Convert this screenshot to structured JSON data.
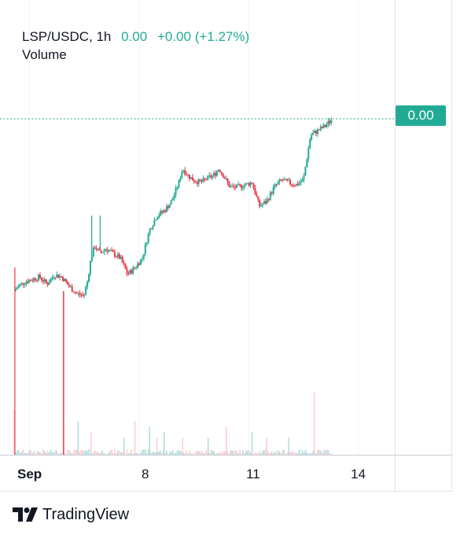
{
  "legend": {
    "symbol": "LSP/USDC, 1h",
    "price": "0.00",
    "change": "+0.00 (+1.27%)",
    "volume_label": "Volume"
  },
  "price_label": "0.00",
  "brand": "TradingView",
  "colors": {
    "up": "#22ab94",
    "down": "#f23645",
    "up_volume": "#b2dfdb",
    "down_volume": "#ffcdd2",
    "grid": "#f0f3fa"
  },
  "chart_data": {
    "type": "candlestick",
    "x_ticks": [
      {
        "label": "Sep",
        "day": 5
      },
      {
        "label": "8",
        "day": 8
      },
      {
        "label": "11",
        "day": 11
      },
      {
        "label": "14",
        "day": 14
      }
    ],
    "x_range_days": [
      4.6,
      15.0
    ],
    "y_range": [
      0,
      100
    ],
    "last_price_level": 99,
    "close_path": [
      [
        4.6,
        26
      ],
      [
        4.7,
        28
      ],
      [
        4.9,
        30
      ],
      [
        5.1,
        31
      ],
      [
        5.3,
        32
      ],
      [
        5.5,
        29
      ],
      [
        5.7,
        33
      ],
      [
        5.9,
        32
      ],
      [
        6.1,
        28
      ],
      [
        6.3,
        25
      ],
      [
        6.5,
        24
      ],
      [
        6.6,
        30
      ],
      [
        6.7,
        40
      ],
      [
        6.8,
        45
      ],
      [
        6.95,
        42
      ],
      [
        7.1,
        44
      ],
      [
        7.3,
        42
      ],
      [
        7.5,
        40
      ],
      [
        7.7,
        33
      ],
      [
        7.9,
        36
      ],
      [
        8.1,
        40
      ],
      [
        8.3,
        52
      ],
      [
        8.5,
        58
      ],
      [
        8.7,
        60
      ],
      [
        8.9,
        64
      ],
      [
        9.1,
        72
      ],
      [
        9.2,
        78
      ],
      [
        9.35,
        75
      ],
      [
        9.5,
        73
      ],
      [
        9.7,
        72
      ],
      [
        9.9,
        74
      ],
      [
        10.05,
        75
      ],
      [
        10.2,
        78
      ],
      [
        10.35,
        74
      ],
      [
        10.5,
        70
      ],
      [
        10.7,
        70
      ],
      [
        10.9,
        71
      ],
      [
        11.1,
        72
      ],
      [
        11.3,
        62
      ],
      [
        11.5,
        64
      ],
      [
        11.7,
        70
      ],
      [
        11.9,
        73
      ],
      [
        12.1,
        72
      ],
      [
        12.3,
        71
      ],
      [
        12.5,
        73
      ],
      [
        12.7,
        92
      ],
      [
        12.9,
        94
      ],
      [
        13.1,
        96
      ],
      [
        13.3,
        99
      ]
    ],
    "volume_spikes": [
      [
        4.6,
        8
      ],
      [
        6.35,
        6
      ],
      [
        6.7,
        4
      ],
      [
        7.6,
        3
      ],
      [
        7.9,
        6
      ],
      [
        8.3,
        5
      ],
      [
        8.5,
        3
      ],
      [
        8.7,
        4
      ],
      [
        9.2,
        3
      ],
      [
        9.9,
        3
      ],
      [
        10.4,
        5
      ],
      [
        11.1,
        4
      ],
      [
        11.5,
        3
      ],
      [
        12.1,
        3
      ],
      [
        12.8,
        11
      ]
    ]
  }
}
